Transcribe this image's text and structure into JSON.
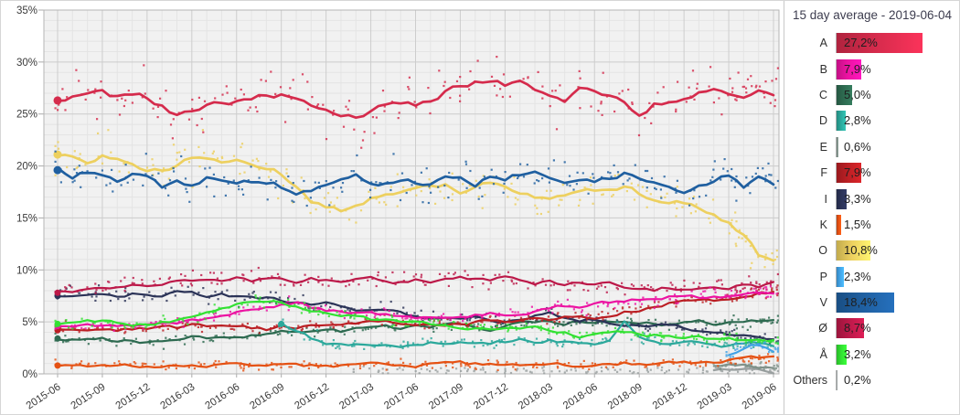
{
  "legend": {
    "title": "15 day average - 2019-06-04",
    "rows": [
      {
        "label": "A",
        "value": 27.2,
        "value_label": "27,2%",
        "color": "#d52b4c"
      },
      {
        "label": "B",
        "value": 7.9,
        "value_label": "7,9%",
        "color": "#ec13a2"
      },
      {
        "label": "C",
        "value": 5.0,
        "value_label": "5,0%",
        "color": "#2d6a50"
      },
      {
        "label": "D",
        "value": 2.8,
        "value_label": "2,8%",
        "color": "#2ba89b"
      },
      {
        "label": "E",
        "value": 0.6,
        "value_label": "0,6%",
        "color": "#7f9189"
      },
      {
        "label": "F",
        "value": 7.9,
        "value_label": "7,9%",
        "color": "#bb1f24"
      },
      {
        "label": "I",
        "value": 3.3,
        "value_label": "3,3%",
        "color": "#2b3357"
      },
      {
        "label": "K",
        "value": 1.5,
        "value_label": "1,5%",
        "color": "#e55113"
      },
      {
        "label": "O",
        "value": 10.8,
        "value_label": "10,8%",
        "color": "#edd05f"
      },
      {
        "label": "P",
        "value": 2.3,
        "value_label": "2,3%",
        "color": "#41a2e6"
      },
      {
        "label": "V",
        "value": 18.4,
        "value_label": "18,4%",
        "color": "#1f5fa0"
      },
      {
        "label": "Ø",
        "value": 8.7,
        "value_label": "8,7%",
        "color": "#bc1949"
      },
      {
        "label": "Å",
        "value": 3.2,
        "value_label": "3,2%",
        "color": "#32e132"
      },
      {
        "label": "Others",
        "value": 0.2,
        "value_label": "0,2%",
        "color": "#999f9f"
      }
    ]
  },
  "chart_data": {
    "type": "line",
    "title": "15 day average - 2019-06-04",
    "xlabel": "",
    "ylabel": "",
    "unit": "%",
    "decimal_style": "comma",
    "ylim": [
      0,
      35
    ],
    "grid": true,
    "legend_position": "right-panel",
    "y_tick_labels": [
      "0%",
      "5%",
      "10%",
      "15%",
      "20%",
      "25%",
      "30%",
      "35%"
    ],
    "x_tick_labels": [
      "2015-06",
      "2015-09",
      "2015-12",
      "2016-03",
      "2016-06",
      "2016-09",
      "2016-12",
      "2017-03",
      "2017-06",
      "2017-09",
      "2017-12",
      "2018-03",
      "2018-06",
      "2018-09",
      "2018-12",
      "2019-03",
      "2019-06"
    ],
    "x_months_per_tick": 3,
    "x_start": "2015-06",
    "x_end": "2019-06",
    "series": [
      {
        "name": "A",
        "color": "#d52b4c",
        "final": 27.2,
        "values": [
          26.3,
          26.8,
          27.2,
          27.1,
          26.6,
          26.9,
          26.6,
          25.9,
          24.9,
          25.3,
          25.9,
          26.2,
          26.3,
          26.6,
          27.0,
          26.8,
          26.4,
          26.0,
          25.6,
          25.2,
          24.8,
          25.4,
          25.9,
          26.0,
          25.8,
          26.4,
          27.2,
          27.8,
          28.1,
          28.3,
          27.9,
          28.2,
          27.4,
          26.8,
          26.3,
          27.3,
          27.0,
          26.7,
          26.2,
          25.0,
          25.9,
          26.3,
          26.6,
          27.0,
          27.5,
          27.2,
          27.0,
          27.5,
          27.2
        ]
      },
      {
        "name": "V",
        "color": "#1f5fa0",
        "final": 18.4,
        "values": [
          19.6,
          19.0,
          19.4,
          19.2,
          18.4,
          19.3,
          19.0,
          18.1,
          18.6,
          18.3,
          18.8,
          18.5,
          18.3,
          18.6,
          18.3,
          18.0,
          17.3,
          17.6,
          18.3,
          18.9,
          19.4,
          18.6,
          18.3,
          18.8,
          18.4,
          18.1,
          18.6,
          19.0,
          18.4,
          19.2,
          18.8,
          19.3,
          19.8,
          19.2,
          18.8,
          19.0,
          18.4,
          18.9,
          19.3,
          18.6,
          18.2,
          17.8,
          17.5,
          18.0,
          18.6,
          19.3,
          18.2,
          19.0,
          18.4
        ]
      },
      {
        "name": "O",
        "color": "#edd05f",
        "final": 10.8,
        "values": [
          21.1,
          20.9,
          20.5,
          21.2,
          20.7,
          20.3,
          19.8,
          19.6,
          20.2,
          20.8,
          21.0,
          20.5,
          20.8,
          20.3,
          20.0,
          19.4,
          18.0,
          16.6,
          16.0,
          15.8,
          16.3,
          16.8,
          17.0,
          17.3,
          17.5,
          17.8,
          18.0,
          17.4,
          17.8,
          18.3,
          17.9,
          17.5,
          17.0,
          16.6,
          17.0,
          17.3,
          17.6,
          17.9,
          18.0,
          17.4,
          17.0,
          16.8,
          16.4,
          16.0,
          15.5,
          14.6,
          13.2,
          11.4,
          10.8
        ]
      },
      {
        "name": "Ø",
        "color": "#bc1949",
        "final": 8.7,
        "values": [
          7.8,
          8.0,
          8.3,
          8.1,
          8.4,
          8.6,
          8.4,
          8.7,
          9.0,
          8.8,
          9.1,
          8.9,
          9.2,
          9.0,
          9.3,
          9.0,
          8.8,
          9.1,
          8.9,
          8.6,
          8.9,
          9.2,
          9.0,
          8.8,
          9.1,
          8.9,
          9.2,
          9.4,
          9.1,
          8.9,
          9.2,
          9.0,
          8.7,
          8.9,
          8.6,
          8.8,
          8.5,
          8.7,
          8.4,
          8.2,
          8.0,
          8.3,
          8.1,
          8.4,
          8.6,
          8.4,
          8.7,
          8.5,
          8.7
        ]
      },
      {
        "name": "I",
        "color": "#2b3357",
        "final": 3.3,
        "values": [
          7.5,
          7.7,
          7.6,
          7.8,
          7.5,
          7.7,
          7.5,
          7.6,
          7.8,
          7.7,
          7.5,
          7.6,
          7.4,
          7.5,
          7.3,
          7.1,
          6.8,
          6.6,
          6.9,
          6.3,
          6.0,
          6.2,
          6.3,
          6.0,
          5.6,
          5.4,
          5.5,
          5.3,
          5.4,
          5.2,
          5.0,
          5.2,
          5.5,
          5.8,
          5.3,
          5.0,
          5.2,
          4.9,
          4.7,
          4.8,
          4.6,
          4.7,
          4.4,
          4.2,
          4.0,
          3.8,
          3.6,
          3.4,
          3.3
        ]
      },
      {
        "name": "B",
        "color": "#ec13a2",
        "final": 7.9,
        "values": [
          4.6,
          4.5,
          4.6,
          4.7,
          4.5,
          4.6,
          4.7,
          4.8,
          4.9,
          5.1,
          5.3,
          5.6,
          5.9,
          6.2,
          6.5,
          6.7,
          6.8,
          6.4,
          6.1,
          5.9,
          5.8,
          5.7,
          5.6,
          5.5,
          5.4,
          5.3,
          5.5,
          5.4,
          5.6,
          5.8,
          5.7,
          5.9,
          6.0,
          6.2,
          6.5,
          6.3,
          6.6,
          6.8,
          7.0,
          7.2,
          7.0,
          7.3,
          7.5,
          7.4,
          7.6,
          7.5,
          7.7,
          7.8,
          7.9
        ]
      },
      {
        "name": "F",
        "color": "#bb1f24",
        "final": 7.9,
        "values": [
          4.2,
          4.3,
          4.2,
          4.4,
          4.3,
          4.4,
          4.3,
          4.5,
          4.4,
          4.6,
          4.5,
          4.6,
          4.5,
          4.4,
          4.3,
          4.5,
          4.4,
          4.6,
          4.7,
          4.8,
          4.9,
          5.0,
          5.1,
          5.0,
          4.9,
          5.0,
          4.9,
          4.8,
          5.0,
          5.1,
          5.0,
          5.2,
          5.3,
          5.2,
          5.4,
          5.6,
          5.5,
          5.7,
          6.0,
          6.2,
          6.5,
          6.8,
          7.0,
          7.2,
          7.0,
          7.3,
          7.5,
          7.8,
          7.9
        ]
      },
      {
        "name": "C",
        "color": "#2d6a50",
        "final": 5.0,
        "values": [
          3.4,
          3.3,
          3.2,
          3.4,
          3.2,
          3.1,
          3.0,
          3.2,
          3.3,
          3.5,
          3.4,
          3.6,
          3.5,
          3.7,
          3.8,
          4.0,
          3.9,
          4.1,
          4.2,
          4.1,
          4.3,
          4.4,
          4.5,
          4.4,
          4.6,
          4.5,
          4.7,
          4.8,
          4.6,
          4.4,
          4.6,
          4.8,
          4.9,
          5.0,
          4.8,
          5.0,
          4.9,
          5.1,
          5.0,
          4.8,
          4.9,
          4.7,
          4.9,
          5.0,
          4.8,
          5.0,
          4.9,
          5.1,
          5.0
        ]
      },
      {
        "name": "Å",
        "color": "#32e132",
        "final": 3.2,
        "values": [
          4.8,
          4.9,
          5.0,
          5.1,
          4.9,
          4.8,
          4.8,
          5.0,
          5.2,
          5.4,
          5.8,
          6.2,
          6.6,
          6.9,
          7.0,
          6.8,
          6.5,
          6.2,
          6.0,
          5.7,
          5.5,
          5.3,
          5.2,
          5.0,
          4.9,
          4.8,
          4.7,
          4.6,
          4.5,
          4.4,
          4.3,
          4.4,
          4.5,
          4.2,
          3.9,
          3.6,
          4.0,
          4.2,
          4.0,
          3.8,
          3.7,
          3.8,
          3.6,
          3.5,
          3.4,
          3.5,
          3.3,
          3.2,
          3.2
        ]
      },
      {
        "name": "K",
        "color": "#e55113",
        "final": 1.5,
        "values": [
          0.8,
          0.8,
          0.8,
          0.8,
          0.8,
          0.8,
          0.8,
          0.8,
          0.8,
          0.8,
          0.8,
          0.8,
          0.8,
          0.8,
          0.8,
          0.8,
          0.8,
          0.8,
          0.8,
          0.8,
          0.8,
          0.9,
          0.8,
          0.9,
          0.8,
          0.9,
          0.9,
          1.0,
          0.9,
          0.9,
          0.9,
          0.9,
          1.0,
          0.9,
          0.9,
          0.9,
          0.9,
          0.9,
          1.0,
          0.9,
          1.0,
          1.0,
          1.0,
          1.1,
          1.0,
          1.2,
          1.3,
          1.5,
          1.5
        ]
      },
      {
        "name": "D",
        "color": "#2ba89b",
        "final": 2.8,
        "values": [
          null,
          null,
          null,
          null,
          null,
          null,
          null,
          null,
          null,
          null,
          null,
          null,
          null,
          null,
          null,
          4.8,
          4.2,
          3.5,
          3.0,
          2.8,
          2.7,
          2.6,
          2.8,
          2.7,
          2.9,
          3.0,
          2.8,
          3.1,
          3.0,
          2.9,
          3.1,
          3.3,
          3.0,
          3.2,
          3.0,
          3.1,
          3.0,
          3.3,
          4.9,
          3.3,
          3.0,
          2.9,
          3.1,
          3.0,
          2.8,
          2.7,
          2.9,
          3.0,
          2.8
        ]
      },
      {
        "name": "E",
        "color": "#7f9189",
        "final": 0.6,
        "values": [
          null,
          null,
          null,
          null,
          null,
          null,
          null,
          null,
          null,
          null,
          null,
          null,
          null,
          null,
          null,
          null,
          null,
          null,
          null,
          null,
          null,
          null,
          null,
          null,
          null,
          null,
          null,
          null,
          null,
          null,
          null,
          null,
          null,
          null,
          null,
          null,
          null,
          null,
          null,
          null,
          null,
          null,
          null,
          null,
          0.8,
          1.0,
          0.9,
          0.7,
          0.6
        ]
      },
      {
        "name": "P",
        "color": "#41a2e6",
        "final": 2.3,
        "values": [
          null,
          null,
          null,
          null,
          null,
          null,
          null,
          null,
          null,
          null,
          null,
          null,
          null,
          null,
          null,
          null,
          null,
          null,
          null,
          null,
          null,
          null,
          null,
          null,
          null,
          null,
          null,
          null,
          null,
          null,
          null,
          null,
          null,
          null,
          null,
          null,
          null,
          null,
          null,
          null,
          null,
          null,
          null,
          null,
          null,
          1.8,
          2.6,
          2.9,
          2.3
        ]
      },
      {
        "name": "Others",
        "color": "#999f9f",
        "final": 0.2,
        "line_from": 44,
        "values": [
          null,
          null,
          null,
          null,
          null,
          null,
          null,
          null,
          null,
          null,
          null,
          null,
          null,
          null,
          null,
          null,
          null,
          null,
          null,
          null,
          0.3,
          0.3,
          0.3,
          0.3,
          0.3,
          0.3,
          0.3,
          0.3,
          0.3,
          0.3,
          0.3,
          0.3,
          0.3,
          0.3,
          0.3,
          0.3,
          0.3,
          0.3,
          0.3,
          0.3,
          0.35,
          0.4,
          0.4,
          0.35,
          0.4,
          0.5,
          0.5,
          0.4,
          0.2
        ]
      }
    ]
  }
}
